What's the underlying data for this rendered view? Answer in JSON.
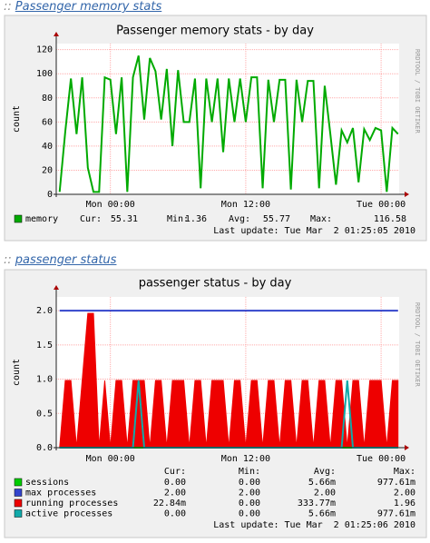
{
  "headings": [
    {
      "prefix": "::",
      "link": "Passenger memory stats"
    },
    {
      "prefix": "::",
      "link": "passenger status"
    }
  ],
  "chart_data": [
    {
      "type": "line",
      "title": "Passenger memory stats - by day",
      "y_label": "count",
      "watermark": "RRDTOOL / TOBI OETIKER",
      "x": [
        -4.5,
        -4,
        -3.5,
        -3,
        -2.5,
        -2,
        -1.5,
        -1,
        -0.5,
        0,
        0.5,
        1,
        1.5,
        2,
        2.5,
        3,
        3.5,
        4,
        4.5,
        5,
        5.5,
        6,
        6.5,
        7,
        7.5,
        8,
        8.5,
        9,
        9.5,
        10,
        10.5,
        11,
        11.5,
        12,
        12.5,
        13,
        13.5,
        14,
        14.5,
        15,
        15.5,
        16,
        16.5,
        17,
        17.5,
        18,
        18.5,
        19,
        19.5,
        20,
        20.5,
        21,
        21.5,
        22,
        22.5,
        23,
        23.5,
        24,
        24.5,
        25,
        25.5
      ],
      "xlim": [
        -4.8,
        25.6
      ],
      "xticks": [
        {
          "value": 0,
          "label": "Mon 00:00"
        },
        {
          "value": 12,
          "label": "Mon 12:00"
        },
        {
          "value": 24,
          "label": "Tue 00:00"
        }
      ],
      "ylim": [
        0,
        125
      ],
      "yticks": [
        0,
        20,
        40,
        60,
        80,
        100,
        120
      ],
      "grid": true,
      "stat_labels": [
        "Cur:",
        "Min:",
        "Avg:",
        "Max:"
      ],
      "series": [
        {
          "name": "memory",
          "color": "#00aa00",
          "fill": false,
          "values": [
            2,
            52,
            96,
            50,
            97,
            22,
            2,
            2,
            97,
            95,
            50,
            97,
            2,
            97,
            115,
            62,
            113,
            102,
            62,
            104,
            40,
            103,
            60,
            60,
            96,
            5,
            96,
            60,
            96,
            35,
            96,
            60,
            96,
            60,
            97,
            97,
            5,
            95,
            60,
            95,
            95,
            4,
            95,
            60,
            94,
            94,
            5,
            90,
            50,
            8,
            53,
            43,
            55,
            10,
            54,
            45,
            55,
            53,
            2,
            55,
            50
          ],
          "stats": [
            "55.31",
            "1.36",
            "55.77",
            "116.58"
          ]
        }
      ],
      "last_update": "Last update: Tue Mar  2 01:25:05 2010"
    },
    {
      "type": "line",
      "title": "passenger status - by day",
      "y_label": "count",
      "watermark": "RRDTOOL / TOBI OETIKER",
      "x": [
        -4.5,
        -4,
        -3.5,
        -3,
        -2.5,
        -2,
        -1.5,
        -1,
        -0.5,
        0,
        0.5,
        1,
        1.5,
        2,
        2.5,
        3,
        3.5,
        4,
        4.5,
        5,
        5.5,
        6,
        6.5,
        7,
        7.5,
        8,
        8.5,
        9,
        9.5,
        10,
        10.5,
        11,
        11.5,
        12,
        12.5,
        13,
        13.5,
        14,
        14.5,
        15,
        15.5,
        16,
        16.5,
        17,
        17.5,
        18,
        18.5,
        19,
        19.5,
        20,
        20.5,
        21,
        21.5,
        22,
        22.5,
        23,
        23.5,
        24,
        24.5,
        25,
        25.5
      ],
      "xlim": [
        -4.8,
        25.6
      ],
      "xticks": [
        {
          "value": 0,
          "label": "Mon 00:00"
        },
        {
          "value": 12,
          "label": "Mon 12:00"
        },
        {
          "value": 24,
          "label": "Tue 00:00"
        }
      ],
      "ylim": [
        0,
        2.2
      ],
      "yticks": [
        {
          "value": 0,
          "label": "0.0"
        },
        {
          "value": 0.5,
          "label": "0.5"
        },
        {
          "value": 1,
          "label": "1.0"
        },
        {
          "value": 1.5,
          "label": "1.5"
        },
        {
          "value": 2,
          "label": "2.0"
        }
      ],
      "grid": true,
      "stat_labels": [
        "Cur:",
        "Min:",
        "Avg:",
        "Max:"
      ],
      "series": [
        {
          "name": "running processes",
          "color": "#ee0000",
          "fill": true,
          "values": [
            0,
            0.98,
            0.98,
            0,
            0.98,
            1.96,
            1.96,
            0,
            0.98,
            0,
            0.98,
            0.98,
            0,
            0.98,
            0.98,
            0.98,
            0,
            0.98,
            0.98,
            0,
            0.98,
            0.98,
            0.98,
            0,
            0.98,
            0.98,
            0,
            0.98,
            0.98,
            0.98,
            0,
            0.98,
            0.98,
            0,
            0.98,
            0.98,
            0,
            0.98,
            0.98,
            0,
            0.98,
            0.98,
            0,
            0.98,
            0.98,
            0,
            0.98,
            0.98,
            0,
            0.98,
            0.98,
            0,
            0.98,
            0.98,
            0,
            0.98,
            0.98,
            0.98,
            0,
            0.98,
            0.98
          ],
          "stats": [
            "22.84m",
            "0.00",
            "333.77m",
            "1.96"
          ]
        },
        {
          "name": "sessions",
          "color": "#00cc00",
          "fill": false,
          "values": [
            0,
            0,
            0,
            0,
            0,
            0,
            0,
            0,
            0,
            0,
            0,
            0,
            0,
            0,
            0,
            0,
            0,
            0,
            0,
            0,
            0,
            0,
            0,
            0,
            0,
            0,
            0,
            0,
            0,
            0,
            0,
            0,
            0,
            0,
            0,
            0,
            0,
            0,
            0,
            0,
            0,
            0,
            0,
            0,
            0,
            0,
            0,
            0,
            0,
            0,
            0,
            0,
            0,
            0,
            0,
            0,
            0,
            0,
            0,
            0,
            0
          ],
          "stats": [
            "0.00",
            "0.00",
            "5.66m",
            "977.61m"
          ]
        },
        {
          "name": "max processes",
          "color": "#3344cc",
          "fill": false,
          "values": [
            2,
            2,
            2,
            2,
            2,
            2,
            2,
            2,
            2,
            2,
            2,
            2,
            2,
            2,
            2,
            2,
            2,
            2,
            2,
            2,
            2,
            2,
            2,
            2,
            2,
            2,
            2,
            2,
            2,
            2,
            2,
            2,
            2,
            2,
            2,
            2,
            2,
            2,
            2,
            2,
            2,
            2,
            2,
            2,
            2,
            2,
            2,
            2,
            2,
            2,
            2,
            2,
            2,
            2,
            2,
            2,
            2,
            2,
            2,
            2,
            2
          ],
          "stats": [
            "2.00",
            "2.00",
            "2.00",
            "2.00"
          ]
        },
        {
          "name": "active processes",
          "color": "#11aaaa",
          "fill": false,
          "values": [
            0,
            0,
            0,
            0,
            0,
            0,
            0,
            0,
            0,
            0,
            0,
            0,
            0,
            0,
            0.98,
            0,
            0,
            0,
            0,
            0,
            0,
            0,
            0,
            0,
            0,
            0,
            0,
            0,
            0,
            0,
            0,
            0,
            0,
            0,
            0,
            0,
            0,
            0,
            0,
            0,
            0,
            0,
            0,
            0,
            0,
            0,
            0,
            0,
            0,
            0,
            0,
            0.98,
            0,
            0,
            0,
            0,
            0,
            0,
            0,
            0,
            0
          ],
          "stats": [
            "0.00",
            "0.00",
            "5.66m",
            "977.61m"
          ]
        }
      ],
      "legend_order": [
        1,
        2,
        0,
        3
      ],
      "last_update": "Last update: Tue Mar  2 01:25:06 2010"
    }
  ]
}
